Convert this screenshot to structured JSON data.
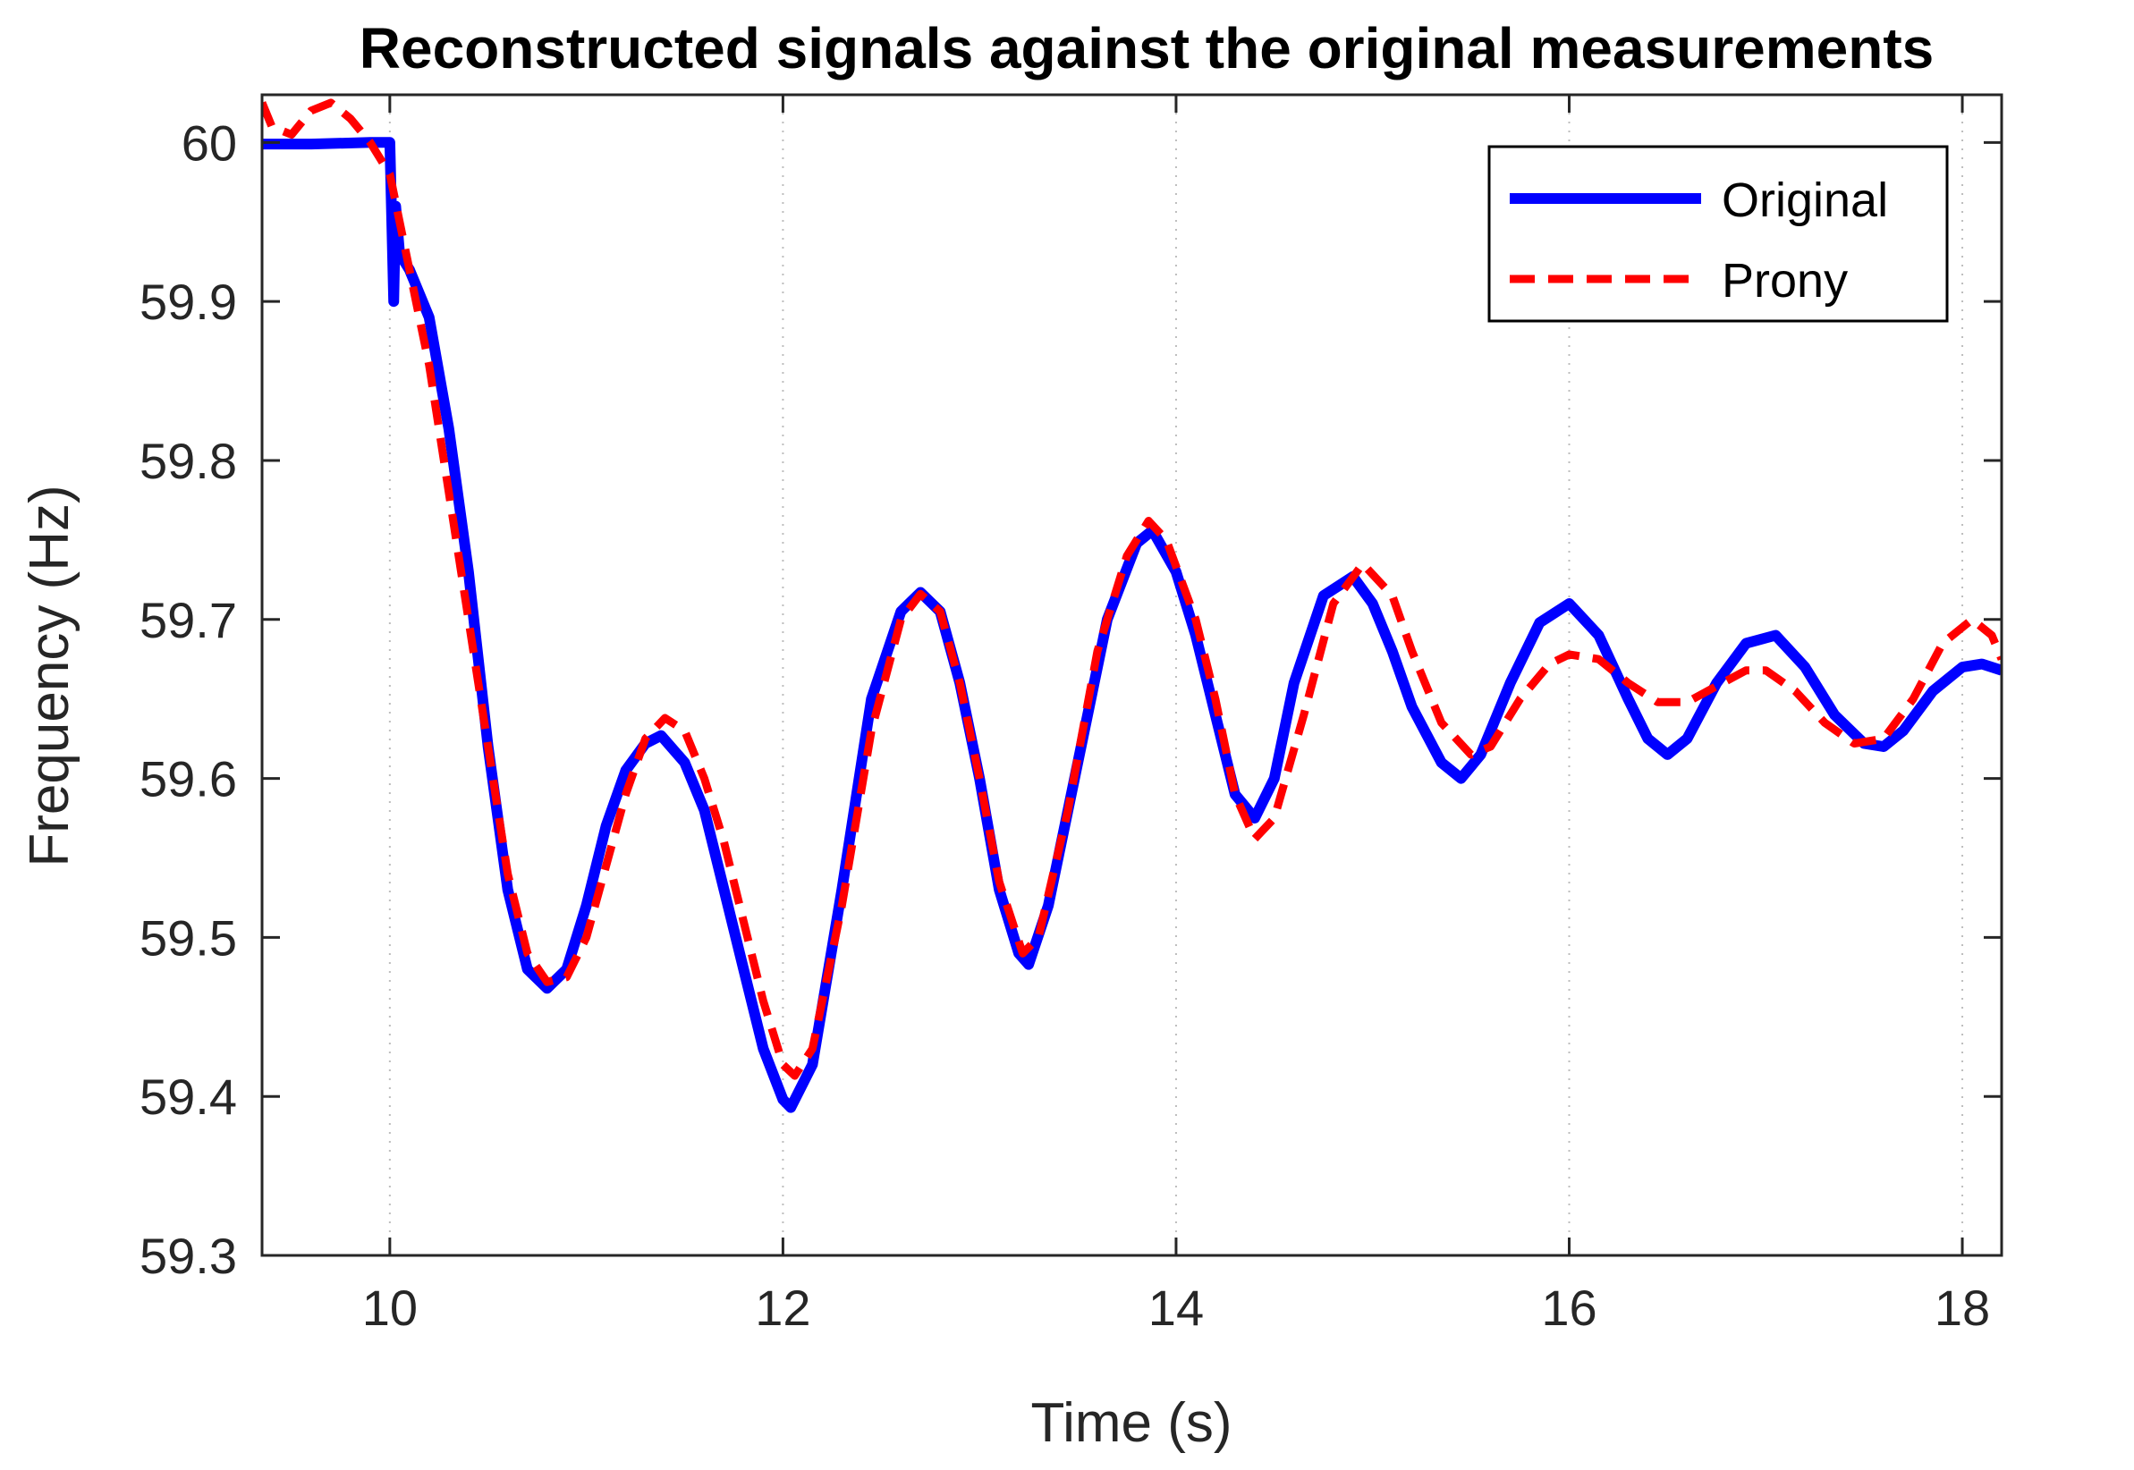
{
  "chart_data": {
    "type": "line",
    "title": "Reconstructed signals against the original measurements",
    "xlabel": "Time (s)",
    "ylabel": "Frequency (Hz)",
    "xlim": [
      9.35,
      18.2
    ],
    "ylim": [
      59.3,
      60.03
    ],
    "xticks": [
      10,
      12,
      14,
      16,
      18
    ],
    "yticks": [
      59.3,
      59.4,
      59.5,
      59.6,
      59.7,
      59.8,
      59.9,
      60
    ],
    "ytick_labels": [
      "59.3",
      "59.4",
      "59.5",
      "59.6",
      "59.7",
      "59.8",
      "59.9",
      "60"
    ],
    "grid": "x-dotted",
    "legend_position": "top-right",
    "series": [
      {
        "name": "Original",
        "color": "#0000ff",
        "style": "solid",
        "points": [
          [
            9.35,
            59.999
          ],
          [
            9.6,
            59.999
          ],
          [
            9.9,
            60.0
          ],
          [
            10.0,
            60.0
          ],
          [
            10.02,
            59.9
          ],
          [
            10.03,
            59.96
          ],
          [
            10.05,
            59.93
          ],
          [
            10.1,
            59.92
          ],
          [
            10.2,
            59.89
          ],
          [
            10.3,
            59.82
          ],
          [
            10.4,
            59.73
          ],
          [
            10.5,
            59.62
          ],
          [
            10.6,
            59.53
          ],
          [
            10.7,
            59.48
          ],
          [
            10.8,
            59.468
          ],
          [
            10.9,
            59.48
          ],
          [
            11.0,
            59.52
          ],
          [
            11.1,
            59.57
          ],
          [
            11.2,
            59.605
          ],
          [
            11.3,
            59.622
          ],
          [
            11.38,
            59.627
          ],
          [
            11.5,
            59.61
          ],
          [
            11.6,
            59.58
          ],
          [
            11.7,
            59.53
          ],
          [
            11.8,
            59.48
          ],
          [
            11.9,
            59.43
          ],
          [
            12.0,
            59.398
          ],
          [
            12.04,
            59.393
          ],
          [
            12.15,
            59.42
          ],
          [
            12.3,
            59.53
          ],
          [
            12.45,
            59.65
          ],
          [
            12.6,
            59.705
          ],
          [
            12.7,
            59.717
          ],
          [
            12.8,
            59.705
          ],
          [
            12.9,
            59.66
          ],
          [
            13.0,
            59.6
          ],
          [
            13.1,
            59.53
          ],
          [
            13.2,
            59.49
          ],
          [
            13.25,
            59.483
          ],
          [
            13.35,
            59.52
          ],
          [
            13.5,
            59.61
          ],
          [
            13.65,
            59.7
          ],
          [
            13.8,
            59.748
          ],
          [
            13.88,
            59.756
          ],
          [
            14.0,
            59.73
          ],
          [
            14.1,
            59.69
          ],
          [
            14.2,
            59.64
          ],
          [
            14.3,
            59.59
          ],
          [
            14.4,
            59.575
          ],
          [
            14.5,
            59.6
          ],
          [
            14.6,
            59.66
          ],
          [
            14.75,
            59.715
          ],
          [
            14.9,
            59.727
          ],
          [
            15.0,
            59.71
          ],
          [
            15.1,
            59.68
          ],
          [
            15.2,
            59.645
          ],
          [
            15.35,
            59.61
          ],
          [
            15.45,
            59.6
          ],
          [
            15.55,
            59.615
          ],
          [
            15.7,
            59.66
          ],
          [
            15.85,
            59.698
          ],
          [
            16.0,
            59.71
          ],
          [
            16.15,
            59.69
          ],
          [
            16.3,
            59.65
          ],
          [
            16.4,
            59.625
          ],
          [
            16.5,
            59.615
          ],
          [
            16.6,
            59.625
          ],
          [
            16.75,
            59.66
          ],
          [
            16.9,
            59.685
          ],
          [
            17.05,
            59.69
          ],
          [
            17.2,
            59.67
          ],
          [
            17.35,
            59.64
          ],
          [
            17.5,
            59.622
          ],
          [
            17.6,
            59.62
          ],
          [
            17.7,
            59.63
          ],
          [
            17.85,
            59.655
          ],
          [
            18.0,
            59.67
          ],
          [
            18.1,
            59.672
          ],
          [
            18.2,
            59.668
          ]
        ]
      },
      {
        "name": "Prony",
        "color": "#ff0000",
        "style": "dashed",
        "points": [
          [
            9.35,
            60.025
          ],
          [
            9.4,
            60.01
          ],
          [
            9.5,
            60.005
          ],
          [
            9.6,
            60.02
          ],
          [
            9.7,
            60.025
          ],
          [
            9.8,
            60.015
          ],
          [
            9.9,
            60.0
          ],
          [
            10.0,
            59.98
          ],
          [
            10.1,
            59.92
          ],
          [
            10.2,
            59.86
          ],
          [
            10.3,
            59.78
          ],
          [
            10.4,
            59.7
          ],
          [
            10.5,
            59.62
          ],
          [
            10.6,
            59.54
          ],
          [
            10.7,
            59.49
          ],
          [
            10.8,
            59.472
          ],
          [
            10.9,
            59.475
          ],
          [
            11.0,
            59.5
          ],
          [
            11.1,
            59.545
          ],
          [
            11.2,
            59.59
          ],
          [
            11.3,
            59.625
          ],
          [
            11.4,
            59.638
          ],
          [
            11.5,
            59.63
          ],
          [
            11.6,
            59.6
          ],
          [
            11.7,
            59.56
          ],
          [
            11.8,
            59.51
          ],
          [
            11.9,
            59.46
          ],
          [
            12.0,
            59.42
          ],
          [
            12.06,
            59.413
          ],
          [
            12.15,
            59.43
          ],
          [
            12.3,
            59.52
          ],
          [
            12.45,
            59.63
          ],
          [
            12.6,
            59.7
          ],
          [
            12.7,
            59.716
          ],
          [
            12.8,
            59.705
          ],
          [
            12.9,
            59.66
          ],
          [
            13.0,
            59.6
          ],
          [
            13.1,
            59.535
          ],
          [
            13.22,
            59.49
          ],
          [
            13.3,
            59.5
          ],
          [
            13.45,
            59.58
          ],
          [
            13.6,
            59.68
          ],
          [
            13.75,
            59.74
          ],
          [
            13.86,
            59.762
          ],
          [
            13.95,
            59.75
          ],
          [
            14.1,
            59.7
          ],
          [
            14.2,
            59.65
          ],
          [
            14.3,
            59.59
          ],
          [
            14.4,
            59.562
          ],
          [
            14.5,
            59.575
          ],
          [
            14.65,
            59.64
          ],
          [
            14.8,
            59.71
          ],
          [
            14.95,
            59.735
          ],
          [
            15.1,
            59.715
          ],
          [
            15.2,
            59.68
          ],
          [
            15.35,
            59.635
          ],
          [
            15.5,
            59.615
          ],
          [
            15.6,
            59.62
          ],
          [
            15.75,
            59.65
          ],
          [
            15.9,
            59.672
          ],
          [
            16.0,
            59.678
          ],
          [
            16.15,
            59.675
          ],
          [
            16.3,
            59.66
          ],
          [
            16.45,
            59.648
          ],
          [
            16.6,
            59.648
          ],
          [
            16.75,
            59.658
          ],
          [
            16.9,
            59.668
          ],
          [
            17.0,
            59.668
          ],
          [
            17.15,
            59.655
          ],
          [
            17.3,
            59.635
          ],
          [
            17.45,
            59.622
          ],
          [
            17.6,
            59.625
          ],
          [
            17.75,
            59.65
          ],
          [
            17.9,
            59.685
          ],
          [
            18.05,
            59.7
          ],
          [
            18.15,
            59.69
          ],
          [
            18.2,
            59.675
          ]
        ]
      }
    ]
  }
}
